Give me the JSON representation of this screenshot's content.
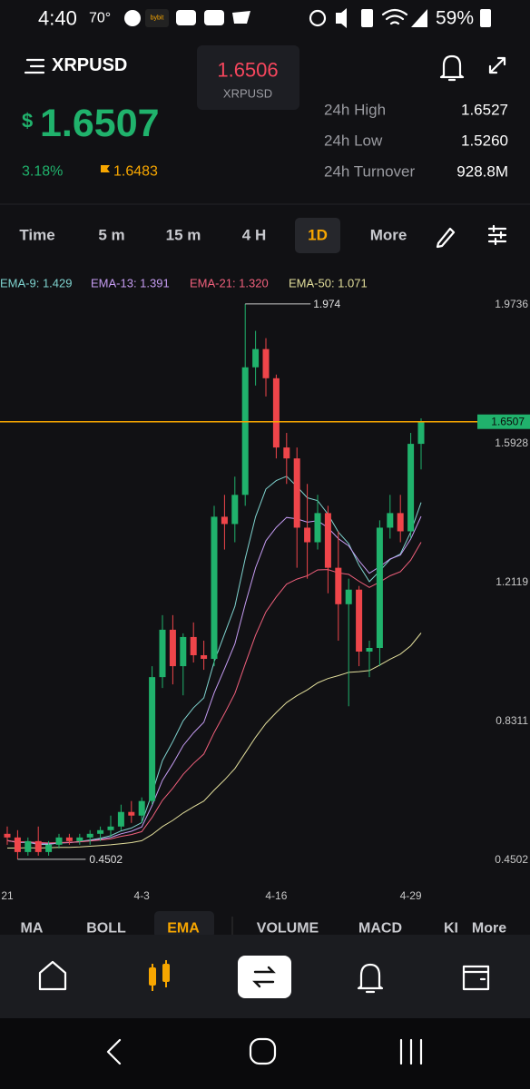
{
  "status_bar": {
    "time": "4:40",
    "temperature": "70°",
    "app_badge": "bybit",
    "battery": "59%"
  },
  "header": {
    "symbol": "XRPUSD",
    "mark_price": "1.6506",
    "mark_symbol": "XRPUSD",
    "currency": "$",
    "last_price": "1.6507",
    "change": "3.18%",
    "index_price": "1.6483"
  },
  "stats": [
    {
      "label": "24h High",
      "value": "1.6527"
    },
    {
      "label": "24h Low",
      "value": "1.5260"
    },
    {
      "label": "24h Turnover",
      "value": "928.8M"
    }
  ],
  "timeframes": [
    "Time",
    "5 m",
    "15 m",
    "4 H",
    "1D",
    "More"
  ],
  "active_timeframe": 4,
  "chart_data": {
    "type": "candlestick",
    "categories": [
      "21",
      null,
      null,
      null,
      null,
      null,
      null,
      null,
      null,
      null,
      null,
      null,
      null,
      "4-3",
      null,
      null,
      null,
      null,
      null,
      null,
      null,
      null,
      null,
      null,
      null,
      null,
      "4-16",
      null,
      null,
      null,
      null,
      null,
      null,
      null,
      null,
      null,
      null,
      null,
      null,
      "4-29",
      null
    ],
    "open": [
      0.52,
      0.51,
      0.47,
      0.5,
      0.47,
      0.49,
      0.51,
      0.5,
      0.51,
      0.52,
      0.53,
      0.54,
      0.58,
      0.57,
      0.61,
      0.95,
      1.08,
      0.98,
      1.06,
      1.01,
      1.0,
      1.39,
      1.37,
      1.45,
      1.8,
      1.85,
      1.77,
      1.58,
      1.55,
      1.36,
      1.32,
      1.4,
      1.25,
      1.15,
      1.19,
      1.02,
      1.03,
      1.36,
      1.4,
      1.35,
      1.59
    ],
    "high": [
      0.54,
      0.53,
      0.51,
      0.54,
      0.5,
      0.52,
      0.52,
      0.52,
      0.53,
      0.54,
      0.57,
      0.6,
      0.61,
      0.62,
      0.98,
      1.12,
      1.12,
      1.07,
      1.1,
      1.05,
      1.42,
      1.45,
      1.5,
      1.974,
      1.9,
      1.88,
      1.78,
      1.62,
      1.58,
      1.48,
      1.45,
      1.42,
      1.35,
      1.22,
      1.2,
      1.05,
      1.38,
      1.45,
      1.45,
      1.62,
      1.66
    ],
    "low": [
      0.49,
      0.4502,
      0.46,
      0.46,
      0.46,
      0.48,
      0.49,
      0.49,
      0.49,
      0.5,
      0.51,
      0.53,
      0.55,
      0.55,
      0.6,
      0.92,
      0.93,
      0.9,
      0.99,
      0.97,
      0.98,
      1.3,
      1.32,
      1.42,
      1.75,
      1.72,
      1.55,
      1.48,
      1.25,
      1.22,
      1.3,
      1.18,
      1.05,
      0.87,
      0.98,
      0.95,
      0.98,
      1.33,
      1.32,
      1.33,
      1.52
    ],
    "close": [
      0.51,
      0.47,
      0.5,
      0.47,
      0.49,
      0.51,
      0.5,
      0.51,
      0.52,
      0.53,
      0.54,
      0.58,
      0.57,
      0.61,
      0.95,
      1.08,
      0.98,
      1.06,
      1.01,
      1.0,
      1.39,
      1.37,
      1.45,
      1.8,
      1.85,
      1.77,
      1.58,
      1.55,
      1.36,
      1.32,
      1.4,
      1.25,
      1.15,
      1.19,
      1.02,
      1.03,
      1.36,
      1.4,
      1.35,
      1.59,
      1.6507
    ],
    "up_color": "#20b26c",
    "down_color": "#ef454a",
    "price_line_color": "#f7a600",
    "series": [
      {
        "name": "EMA-9: 1.429",
        "color": "#7fd3cf",
        "values": [
          0.502,
          0.496,
          0.497,
          0.491,
          0.491,
          0.495,
          0.496,
          0.499,
          0.503,
          0.508,
          0.515,
          0.528,
          0.536,
          0.551,
          0.631,
          0.721,
          0.773,
          0.83,
          0.866,
          0.893,
          0.992,
          1.068,
          1.144,
          1.275,
          1.39,
          1.466,
          1.489,
          1.501,
          1.473,
          1.442,
          1.434,
          1.397,
          1.348,
          1.316,
          1.257,
          1.212,
          1.241,
          1.273,
          1.288,
          1.348,
          1.429
        ]
      },
      {
        "name": "EMA-13: 1.391",
        "color": "#c59cf2",
        "values": [
          0.501,
          0.497,
          0.497,
          0.493,
          0.493,
          0.495,
          0.496,
          0.498,
          0.501,
          0.505,
          0.51,
          0.52,
          0.527,
          0.539,
          0.598,
          0.667,
          0.712,
          0.762,
          0.797,
          0.826,
          0.907,
          0.973,
          1.041,
          1.15,
          1.25,
          1.324,
          1.361,
          1.388,
          1.384,
          1.375,
          1.379,
          1.36,
          1.33,
          1.31,
          1.269,
          1.235,
          1.253,
          1.274,
          1.285,
          1.329,
          1.391
        ]
      },
      {
        "name": "EMA-21: 1.320",
        "color": "#f0607c",
        "values": [
          0.501,
          0.498,
          0.498,
          0.496,
          0.495,
          0.496,
          0.497,
          0.498,
          0.5,
          0.503,
          0.506,
          0.513,
          0.518,
          0.526,
          0.565,
          0.612,
          0.645,
          0.683,
          0.713,
          0.739,
          0.798,
          0.85,
          0.905,
          0.986,
          1.065,
          1.129,
          1.17,
          1.205,
          1.219,
          1.228,
          1.244,
          1.245,
          1.236,
          1.232,
          1.213,
          1.196,
          1.211,
          1.228,
          1.239,
          1.271,
          1.32
        ]
      },
      {
        "name": "EMA-50: 1.071",
        "color": "#e3df9c",
        "values": [
          0.481,
          0.481,
          0.482,
          0.481,
          0.482,
          0.483,
          0.483,
          0.484,
          0.486,
          0.488,
          0.49,
          0.493,
          0.496,
          0.501,
          0.518,
          0.54,
          0.557,
          0.577,
          0.594,
          0.61,
          0.64,
          0.668,
          0.699,
          0.742,
          0.785,
          0.823,
          0.853,
          0.88,
          0.899,
          0.915,
          0.934,
          0.946,
          0.954,
          0.963,
          0.965,
          0.968,
          0.983,
          0.999,
          1.013,
          1.036,
          1.071
        ]
      }
    ],
    "ylim": [
      0.405,
      2.011
    ],
    "yticks": [
      1.9736,
      1.5928,
      1.2119,
      0.8311,
      0.4502
    ]
  },
  "indicators": [
    "MA",
    "BOLL",
    "EMA",
    "VOLUME",
    "MACD",
    "KI",
    "More"
  ],
  "active_indicator": 2
}
